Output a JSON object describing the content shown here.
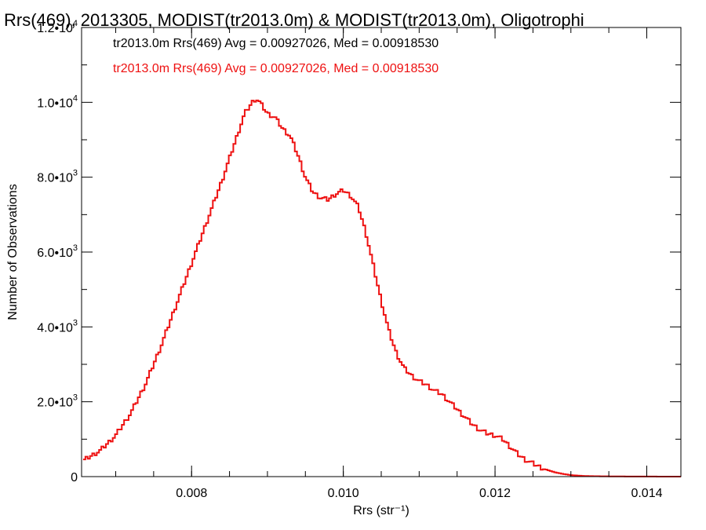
{
  "chart_data": {
    "type": "line",
    "title": "Rrs(469), 2013305, MODIST(tr2013.0m) & MODIST(tr2013.0m), Oligotrophi",
    "xlabel": "Rrs (str⁻¹)",
    "ylabel": "Number of Observations",
    "xlim": [
      0.00655,
      0.01445
    ],
    "ylim": [
      0,
      12000
    ],
    "x_ticks": [
      {
        "value": 0.008,
        "label": "0.008"
      },
      {
        "value": 0.01,
        "label": "0.010"
      },
      {
        "value": 0.012,
        "label": "0.012"
      },
      {
        "value": 0.014,
        "label": "0.014"
      }
    ],
    "y_ticks": [
      {
        "value": 0,
        "mant": "0",
        "exp": ""
      },
      {
        "value": 2000,
        "mant": "2.0•10",
        "exp": "3"
      },
      {
        "value": 4000,
        "mant": "4.0•10",
        "exp": "3"
      },
      {
        "value": 6000,
        "mant": "6.0•10",
        "exp": "3"
      },
      {
        "value": 8000,
        "mant": "8.0•10",
        "exp": "3"
      },
      {
        "value": 10000,
        "mant": "1.0•10",
        "exp": "4"
      },
      {
        "value": 12000,
        "mant": "1.2•10",
        "exp": "4"
      }
    ],
    "grid": false,
    "legend": [
      {
        "text": "tr2013.0m Rrs(469) Avg = 0.00927026, Med = 0.00918530",
        "color": "#000000"
      },
      {
        "text": "tr2013.0m Rrs(469) Avg = 0.00927026, Med = 0.00918530",
        "color": "#ee1111"
      }
    ],
    "legend_placement": "top-left",
    "series": [
      {
        "color": "#ee1111",
        "x": [
          0.00655,
          0.0068,
          0.007,
          0.0072,
          0.0074,
          0.0076,
          0.0078,
          0.008,
          0.0082,
          0.0084,
          0.0086,
          0.0087,
          0.0088,
          0.00885,
          0.0089,
          0.009,
          0.0091,
          0.0092,
          0.0093,
          0.0094,
          0.0095,
          0.0096,
          0.0097,
          0.0098,
          0.0099,
          0.01,
          0.0101,
          0.0102,
          0.0103,
          0.0104,
          0.0105,
          0.0106,
          0.0107,
          0.0108,
          0.0109,
          0.011,
          0.0111,
          0.0112,
          0.0113,
          0.0114,
          0.0115,
          0.0116,
          0.0117,
          0.0118,
          0.0119,
          0.012,
          0.0121,
          0.0122,
          0.0123,
          0.0124,
          0.0125,
          0.0126,
          0.0127,
          0.0128,
          0.0129,
          0.013,
          0.0131,
          0.0132,
          0.0134,
          0.0136,
          0.0138,
          0.014,
          0.0142,
          0.01445
        ],
        "values": [
          400,
          700,
          1100,
          1700,
          2500,
          3500,
          4600,
          5700,
          6800,
          7900,
          9100,
          9700,
          10000,
          10100,
          10000,
          9700,
          9600,
          9300,
          9100,
          8600,
          8000,
          7600,
          7450,
          7400,
          7550,
          7650,
          7500,
          7200,
          6500,
          5600,
          4700,
          3900,
          3300,
          2900,
          2700,
          2550,
          2450,
          2300,
          2200,
          2000,
          1800,
          1600,
          1400,
          1250,
          1150,
          1100,
          1000,
          800,
          600,
          450,
          350,
          250,
          170,
          110,
          70,
          40,
          25,
          15,
          8,
          5,
          3,
          2,
          1,
          0
        ]
      }
    ]
  }
}
